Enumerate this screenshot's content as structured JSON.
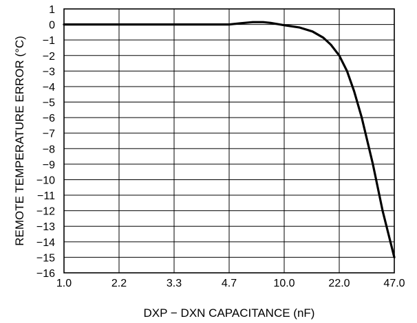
{
  "chart_data": {
    "type": "line",
    "title": "",
    "xlabel": "DXP − DXN CAPACITANCE (nF)",
    "ylabel": "REMOTE TEMPERATURE ERROR (°C)",
    "x_scale": "categorical-log",
    "x_ticks": [
      "1.0",
      "2.2",
      "3.3",
      "4.7",
      "10.0",
      "22.0",
      "47.0"
    ],
    "y_ticks": [
      "1",
      "0",
      "−1",
      "−2",
      "−3",
      "−4",
      "−5",
      "−6",
      "−7",
      "−8",
      "−9",
      "−10",
      "−11",
      "−12",
      "−13",
      "−14",
      "−15",
      "−16"
    ],
    "ylim": [
      -16,
      1
    ],
    "grid": true,
    "legend": "none",
    "line_color": "#000000",
    "series": [
      {
        "x": [
          1.0,
          2.2,
          3.3,
          4.7,
          5.5,
          6.5,
          7.5,
          8.3,
          10.0,
          12.5,
          15.0,
          17.5,
          19.5,
          22.0,
          24.5,
          27.0,
          30.0,
          35.0,
          40.0,
          47.0
        ],
        "values": [
          0,
          0,
          0,
          0,
          0.08,
          0.15,
          0.15,
          0.1,
          -0.05,
          -0.2,
          -0.45,
          -0.85,
          -1.3,
          -2.0,
          -3.0,
          -4.3,
          -6.0,
          -9.0,
          -12.0,
          -15.0
        ]
      }
    ]
  }
}
